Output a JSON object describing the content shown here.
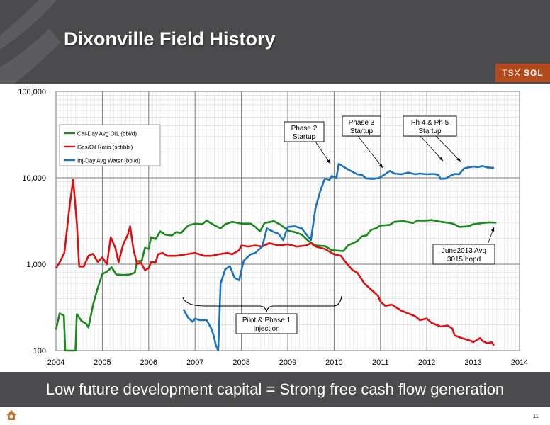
{
  "header": {
    "title": "Dixonville Field History",
    "ticker_prefix": "TSX",
    "ticker_symbol": "SGL",
    "accent_color": "#b34a1e",
    "background_color": "#4b4b4d"
  },
  "banner": {
    "text": "Low future development capital = Strong free cash flow generation"
  },
  "page_number": "11",
  "chart_data": {
    "type": "line",
    "title": "",
    "xlabel": "",
    "ylabel": "",
    "x_scale": "linear",
    "y_scale": "log",
    "xlim": [
      2004,
      2014
    ],
    "ylim": [
      100,
      100000
    ],
    "x_ticks": [
      "2004",
      "2005",
      "2006",
      "2007",
      "2008",
      "2009",
      "2010",
      "2011",
      "2012",
      "2013",
      "2014"
    ],
    "y_ticks": [
      {
        "value": 100,
        "label": "100"
      },
      {
        "value": 1000,
        "label": "1,000"
      },
      {
        "value": 10000,
        "label": "10,000"
      },
      {
        "value": 100000,
        "label": "100,000"
      }
    ],
    "grid": true,
    "legend_position": "top-left",
    "series": [
      {
        "name": "Cal-Day Avg OIL (bbl/d)",
        "color": "#1a8a1a",
        "points": [
          [
            2004.0,
            175
          ],
          [
            2004.08,
            270
          ],
          [
            2004.17,
            255
          ],
          [
            2004.2,
            100
          ],
          [
            2004.42,
            100
          ],
          [
            2004.45,
            265
          ],
          [
            2004.55,
            220
          ],
          [
            2004.65,
            205
          ],
          [
            2004.7,
            185
          ],
          [
            2004.8,
            340
          ],
          [
            2004.9,
            530
          ],
          [
            2005.0,
            770
          ],
          [
            2005.1,
            820
          ],
          [
            2005.2,
            920
          ],
          [
            2005.3,
            760
          ],
          [
            2005.45,
            750
          ],
          [
            2005.6,
            760
          ],
          [
            2005.7,
            800
          ],
          [
            2005.75,
            1080
          ],
          [
            2005.85,
            1100
          ],
          [
            2005.92,
            1550
          ],
          [
            2006.0,
            1500
          ],
          [
            2006.05,
            2050
          ],
          [
            2006.15,
            1950
          ],
          [
            2006.25,
            2400
          ],
          [
            2006.35,
            2200
          ],
          [
            2006.5,
            2150
          ],
          [
            2006.6,
            2350
          ],
          [
            2006.7,
            2300
          ],
          [
            2006.85,
            2800
          ],
          [
            2007.0,
            2950
          ],
          [
            2007.15,
            2900
          ],
          [
            2007.25,
            3200
          ],
          [
            2007.4,
            2850
          ],
          [
            2007.55,
            2600
          ],
          [
            2007.65,
            2900
          ],
          [
            2007.8,
            3100
          ],
          [
            2008.0,
            2950
          ],
          [
            2008.2,
            2950
          ],
          [
            2008.3,
            2700
          ],
          [
            2008.4,
            2400
          ],
          [
            2008.5,
            3000
          ],
          [
            2008.7,
            3150
          ],
          [
            2008.85,
            2850
          ],
          [
            2009.0,
            2450
          ],
          [
            2009.15,
            2350
          ],
          [
            2009.3,
            2200
          ],
          [
            2009.45,
            1850
          ],
          [
            2009.6,
            1650
          ],
          [
            2009.8,
            1620
          ],
          [
            2009.95,
            1450
          ],
          [
            2010.2,
            1420
          ],
          [
            2010.3,
            1650
          ],
          [
            2010.5,
            1850
          ],
          [
            2010.6,
            2100
          ],
          [
            2010.7,
            2150
          ],
          [
            2010.8,
            2500
          ],
          [
            2010.9,
            2600
          ],
          [
            2011.0,
            2800
          ],
          [
            2011.2,
            2850
          ],
          [
            2011.3,
            3100
          ],
          [
            2011.5,
            3150
          ],
          [
            2011.7,
            3000
          ],
          [
            2011.8,
            3200
          ],
          [
            2012.0,
            3200
          ],
          [
            2012.1,
            3250
          ],
          [
            2012.3,
            3100
          ],
          [
            2012.5,
            3000
          ],
          [
            2012.6,
            2900
          ],
          [
            2012.7,
            2700
          ],
          [
            2012.9,
            2750
          ],
          [
            2013.0,
            2900
          ],
          [
            2013.2,
            3000
          ],
          [
            2013.35,
            3050
          ],
          [
            2013.5,
            3015
          ]
        ]
      },
      {
        "name": "Gas/Oil Ratio (scf/bbl)",
        "color": "#dd1111",
        "points": [
          [
            2004.0,
            900
          ],
          [
            2004.08,
            1050
          ],
          [
            2004.18,
            1350
          ],
          [
            2004.3,
            5000
          ],
          [
            2004.37,
            9500
          ],
          [
            2004.45,
            3000
          ],
          [
            2004.5,
            940
          ],
          [
            2004.6,
            940
          ],
          [
            2004.7,
            1250
          ],
          [
            2004.8,
            1320
          ],
          [
            2004.9,
            1060
          ],
          [
            2005.0,
            1200
          ],
          [
            2005.1,
            1000
          ],
          [
            2005.18,
            2050
          ],
          [
            2005.28,
            1550
          ],
          [
            2005.35,
            1050
          ],
          [
            2005.45,
            1700
          ],
          [
            2005.55,
            2200
          ],
          [
            2005.6,
            2750
          ],
          [
            2005.67,
            1500
          ],
          [
            2005.75,
            1000
          ],
          [
            2005.83,
            1050
          ],
          [
            2005.92,
            850
          ],
          [
            2006.0,
            900
          ],
          [
            2006.05,
            1060
          ],
          [
            2006.15,
            1050
          ],
          [
            2006.2,
            1300
          ],
          [
            2006.3,
            1350
          ],
          [
            2006.4,
            1250
          ],
          [
            2006.6,
            1250
          ],
          [
            2006.8,
            1300
          ],
          [
            2007.0,
            1350
          ],
          [
            2007.2,
            1250
          ],
          [
            2007.35,
            1250
          ],
          [
            2007.5,
            1300
          ],
          [
            2007.7,
            1350
          ],
          [
            2007.8,
            1300
          ],
          [
            2007.95,
            1450
          ],
          [
            2008.0,
            1650
          ],
          [
            2008.15,
            1600
          ],
          [
            2008.3,
            1650
          ],
          [
            2008.45,
            1600
          ],
          [
            2008.6,
            1750
          ],
          [
            2008.8,
            1650
          ],
          [
            2009.0,
            1700
          ],
          [
            2009.2,
            1600
          ],
          [
            2009.4,
            1650
          ],
          [
            2009.5,
            1750
          ],
          [
            2009.6,
            1600
          ],
          [
            2009.8,
            1500
          ],
          [
            2010.0,
            1300
          ],
          [
            2010.15,
            1250
          ],
          [
            2010.25,
            1050
          ],
          [
            2010.4,
            850
          ],
          [
            2010.5,
            800
          ],
          [
            2010.65,
            600
          ],
          [
            2010.85,
            480
          ],
          [
            2010.95,
            430
          ],
          [
            2011.0,
            370
          ],
          [
            2011.1,
            330
          ],
          [
            2011.25,
            340
          ],
          [
            2011.45,
            290
          ],
          [
            2011.6,
            270
          ],
          [
            2011.75,
            250
          ],
          [
            2011.85,
            225
          ],
          [
            2012.0,
            235
          ],
          [
            2012.1,
            210
          ],
          [
            2012.3,
            190
          ],
          [
            2012.45,
            195
          ],
          [
            2012.55,
            180
          ],
          [
            2012.6,
            150
          ],
          [
            2012.75,
            140
          ],
          [
            2012.95,
            130
          ],
          [
            2013.0,
            125
          ],
          [
            2013.15,
            140
          ],
          [
            2013.2,
            130
          ],
          [
            2013.3,
            122
          ],
          [
            2013.4,
            125
          ],
          [
            2013.45,
            115
          ]
        ]
      },
      {
        "name": "Inj-Day Avg Water (bbl/d)",
        "color": "#1b72bf",
        "points": [
          [
            2006.75,
            300
          ],
          [
            2006.85,
            240
          ],
          [
            2006.95,
            215
          ],
          [
            2007.0,
            235
          ],
          [
            2007.1,
            225
          ],
          [
            2007.25,
            225
          ],
          [
            2007.35,
            180
          ],
          [
            2007.4,
            150
          ],
          [
            2007.45,
            115
          ],
          [
            2007.5,
            100
          ],
          [
            2007.55,
            600
          ],
          [
            2007.65,
            870
          ],
          [
            2007.75,
            950
          ],
          [
            2007.85,
            700
          ],
          [
            2007.95,
            650
          ],
          [
            2008.05,
            1100
          ],
          [
            2008.2,
            1300
          ],
          [
            2008.3,
            1350
          ],
          [
            2008.45,
            1600
          ],
          [
            2008.55,
            2600
          ],
          [
            2008.7,
            2350
          ],
          [
            2008.8,
            2250
          ],
          [
            2008.9,
            1900
          ],
          [
            2009.0,
            2700
          ],
          [
            2009.15,
            2750
          ],
          [
            2009.3,
            2600
          ],
          [
            2009.5,
            1900
          ],
          [
            2009.6,
            4500
          ],
          [
            2009.7,
            7000
          ],
          [
            2009.8,
            9800
          ],
          [
            2009.9,
            9500
          ],
          [
            2009.95,
            10500
          ],
          [
            2010.05,
            10000
          ],
          [
            2010.1,
            14500
          ],
          [
            2010.3,
            12500
          ],
          [
            2010.5,
            11000
          ],
          [
            2010.6,
            10800
          ],
          [
            2010.7,
            9800
          ],
          [
            2010.85,
            9700
          ],
          [
            2010.95,
            9900
          ],
          [
            2011.0,
            10200
          ],
          [
            2011.1,
            11000
          ],
          [
            2011.2,
            12000
          ],
          [
            2011.3,
            11200
          ],
          [
            2011.45,
            11000
          ],
          [
            2011.6,
            11500
          ],
          [
            2011.75,
            11000
          ],
          [
            2011.85,
            11200
          ],
          [
            2012.0,
            11000
          ],
          [
            2012.15,
            11100
          ],
          [
            2012.25,
            10800
          ],
          [
            2012.3,
            9700
          ],
          [
            2012.4,
            9800
          ],
          [
            2012.5,
            10500
          ],
          [
            2012.6,
            11100
          ],
          [
            2012.7,
            11000
          ],
          [
            2012.8,
            12800
          ],
          [
            2012.9,
            13200
          ],
          [
            2013.0,
            13500
          ],
          [
            2013.1,
            13300
          ],
          [
            2013.2,
            13700
          ],
          [
            2013.3,
            13200
          ],
          [
            2013.45,
            13000
          ]
        ]
      }
    ],
    "annotations": [
      {
        "id": "phase2",
        "lines": [
          "Phase 2",
          "Startup"
        ]
      },
      {
        "id": "phase3",
        "lines": [
          "Phase 3",
          "Startup"
        ]
      },
      {
        "id": "ph45",
        "lines": [
          "Ph 4 & Ph 5",
          "Startup"
        ]
      },
      {
        "id": "june2013",
        "lines": [
          "June2013 Avg",
          "3015 bopd"
        ]
      },
      {
        "id": "pilot",
        "lines": [
          "Pilot & Phase 1",
          "Injection"
        ]
      }
    ]
  }
}
